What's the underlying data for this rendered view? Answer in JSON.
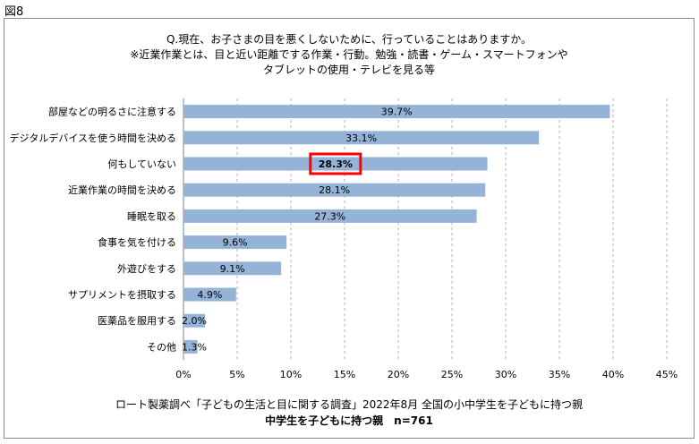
{
  "figure_label": "図8",
  "chart_data": {
    "type": "bar",
    "orientation": "horizontal",
    "title_lines": [
      "Q.現在、お子さまの目を悪くしないために、行っていることはありますか。",
      "※近業作業とは、目と近い距離でする作業・行動。勉強・読書・ゲーム・スマートフォンや",
      "タブレットの使用・テレビを見る等"
    ],
    "categories": [
      "部屋などの明るさに注意する",
      "デジタルデバイスを使う時間を決める",
      "何もしていない",
      "近業作業の時間を決める",
      "睡眠を取る",
      "食事を気を付ける",
      "外遊びをする",
      "サプリメントを摂取する",
      "医薬品を服用する",
      "その他"
    ],
    "values": [
      39.7,
      33.1,
      28.3,
      28.1,
      27.3,
      9.6,
      9.1,
      4.9,
      2.0,
      1.3
    ],
    "value_labels": [
      "39.7%",
      "33.1%",
      "28.3%",
      "28.1%",
      "27.3%",
      "9.6%",
      "9.1%",
      "4.9%",
      "2.0%",
      "1.3%"
    ],
    "highlighted_index": 2,
    "xlim": [
      0,
      45
    ],
    "x_ticks": [
      0,
      5,
      10,
      15,
      20,
      25,
      30,
      35,
      40,
      45
    ],
    "x_tick_labels": [
      "0%",
      "5%",
      "10%",
      "15%",
      "20%",
      "25%",
      "30%",
      "35%",
      "40%",
      "45%"
    ],
    "grid": "vertical-dashed",
    "bar_color": "#95b3d7",
    "highlight_color": "#ff0000",
    "source": "ロート製薬調べ「子どもの生活と目に関する調査」2022年8月 全国の小中学生を子どもに持つ親",
    "sample": "中学生を子どもに持つ親　n=761"
  }
}
